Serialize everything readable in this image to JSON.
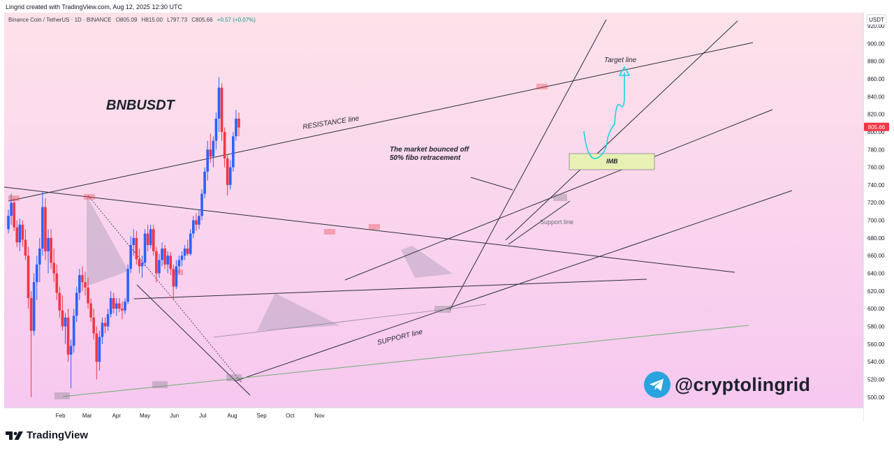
{
  "credit": "Lingrid created with TradingView.com, Aug 12, 2025 12:30 UTC",
  "header": {
    "symbol": "Binance Coin / TetherUS · 1D · BINANCE",
    "open": "O805.09",
    "high": "H815.00",
    "low": "L797.73",
    "close": "C805.66",
    "change": "+0.57 (+0.07%)",
    "change_color": "#089981"
  },
  "brand": "TradingView",
  "handle": "@cryptolingrid",
  "colors": {
    "bull": "#2962ff",
    "bear": "#f23645",
    "bg_top": "#fde2ea",
    "bg_bottom": "#f7c8f0",
    "projection": "#18d5e0",
    "imb_fill": "#e9f0b3",
    "support_green": "#6db06d"
  },
  "annotations": {
    "title": "BNBUSDT",
    "resistance": "RESISTANCE line",
    "support": "SUPPORT line",
    "support_gray": "Support line",
    "target": "Target line",
    "imb": "IMB",
    "bounce_1": "The market bounced off",
    "bounce_2": "50% fibo retracement"
  },
  "chart_data": {
    "type": "candlestick",
    "symbol": "BNBUSDT",
    "timeframe": "1D",
    "currency": "USDT",
    "y_axis_ticks": [
      920,
      900,
      880,
      860,
      840,
      820,
      800,
      780,
      760,
      740,
      720,
      700,
      680,
      660,
      640,
      620,
      600,
      580,
      560,
      540,
      520,
      500
    ],
    "ylim": [
      488,
      935
    ],
    "x_axis_ticks": [
      "Feb",
      "Mar",
      "Apr",
      "May",
      "Jun",
      "Jul",
      "Aug",
      "Sep",
      "Oct",
      "Nov"
    ],
    "last_price": "805.66",
    "last_price_value": 805.66,
    "series": [
      {
        "t": 0,
        "o": 690,
        "h": 712,
        "l": 685,
        "c": 705
      },
      {
        "t": 3,
        "o": 705,
        "h": 730,
        "l": 695,
        "c": 720
      },
      {
        "t": 6,
        "o": 720,
        "h": 725,
        "l": 688,
        "c": 692
      },
      {
        "t": 9,
        "o": 692,
        "h": 700,
        "l": 670,
        "c": 675
      },
      {
        "t": 12,
        "o": 675,
        "h": 702,
        "l": 665,
        "c": 695
      },
      {
        "t": 15,
        "o": 695,
        "h": 700,
        "l": 670,
        "c": 678
      },
      {
        "t": 18,
        "o": 678,
        "h": 690,
        "l": 655,
        "c": 660
      },
      {
        "t": 21,
        "o": 660,
        "h": 670,
        "l": 600,
        "c": 612
      },
      {
        "t": 24,
        "o": 612,
        "h": 620,
        "l": 500,
        "c": 575
      },
      {
        "t": 27,
        "o": 575,
        "h": 640,
        "l": 570,
        "c": 630
      },
      {
        "t": 30,
        "o": 630,
        "h": 660,
        "l": 610,
        "c": 650
      },
      {
        "t": 33,
        "o": 650,
        "h": 680,
        "l": 630,
        "c": 668
      },
      {
        "t": 36,
        "o": 668,
        "h": 732,
        "l": 660,
        "c": 715
      },
      {
        "t": 39,
        "o": 715,
        "h": 725,
        "l": 655,
        "c": 665
      },
      {
        "t": 42,
        "o": 665,
        "h": 690,
        "l": 640,
        "c": 680
      },
      {
        "t": 45,
        "o": 680,
        "h": 690,
        "l": 645,
        "c": 652
      },
      {
        "t": 48,
        "o": 652,
        "h": 668,
        "l": 630,
        "c": 640
      },
      {
        "t": 51,
        "o": 640,
        "h": 650,
        "l": 610,
        "c": 618
      },
      {
        "t": 54,
        "o": 618,
        "h": 625,
        "l": 590,
        "c": 598
      },
      {
        "t": 57,
        "o": 598,
        "h": 615,
        "l": 575,
        "c": 580
      },
      {
        "t": 60,
        "o": 580,
        "h": 595,
        "l": 560,
        "c": 590
      },
      {
        "t": 63,
        "o": 590,
        "h": 600,
        "l": 540,
        "c": 548
      },
      {
        "t": 66,
        "o": 548,
        "h": 565,
        "l": 510,
        "c": 558
      },
      {
        "t": 69,
        "o": 558,
        "h": 600,
        "l": 550,
        "c": 592
      },
      {
        "t": 72,
        "o": 592,
        "h": 625,
        "l": 585,
        "c": 618
      },
      {
        "t": 75,
        "o": 618,
        "h": 645,
        "l": 610,
        "c": 638
      },
      {
        "t": 78,
        "o": 638,
        "h": 648,
        "l": 620,
        "c": 630
      },
      {
        "t": 81,
        "o": 630,
        "h": 642,
        "l": 615,
        "c": 624
      },
      {
        "t": 84,
        "o": 624,
        "h": 635,
        "l": 600,
        "c": 606
      },
      {
        "t": 87,
        "o": 606,
        "h": 612,
        "l": 585,
        "c": 590
      },
      {
        "t": 90,
        "o": 590,
        "h": 600,
        "l": 565,
        "c": 572
      },
      {
        "t": 93,
        "o": 572,
        "h": 580,
        "l": 520,
        "c": 540
      },
      {
        "t": 96,
        "o": 540,
        "h": 575,
        "l": 530,
        "c": 568
      },
      {
        "t": 99,
        "o": 568,
        "h": 590,
        "l": 560,
        "c": 584
      },
      {
        "t": 102,
        "o": 584,
        "h": 590,
        "l": 572,
        "c": 580
      },
      {
        "t": 105,
        "o": 580,
        "h": 600,
        "l": 575,
        "c": 594
      },
      {
        "t": 108,
        "o": 594,
        "h": 620,
        "l": 590,
        "c": 612
      },
      {
        "t": 111,
        "o": 612,
        "h": 618,
        "l": 595,
        "c": 600
      },
      {
        "t": 114,
        "o": 600,
        "h": 612,
        "l": 592,
        "c": 606
      },
      {
        "t": 117,
        "o": 606,
        "h": 612,
        "l": 596,
        "c": 600
      },
      {
        "t": 120,
        "o": 600,
        "h": 608,
        "l": 588,
        "c": 598
      },
      {
        "t": 123,
        "o": 598,
        "h": 612,
        "l": 594,
        "c": 608
      },
      {
        "t": 126,
        "o": 608,
        "h": 650,
        "l": 605,
        "c": 645
      },
      {
        "t": 129,
        "o": 645,
        "h": 682,
        "l": 640,
        "c": 672
      },
      {
        "t": 132,
        "o": 672,
        "h": 690,
        "l": 660,
        "c": 680
      },
      {
        "t": 135,
        "o": 680,
        "h": 688,
        "l": 650,
        "c": 656
      },
      {
        "t": 138,
        "o": 656,
        "h": 668,
        "l": 640,
        "c": 648
      },
      {
        "t": 141,
        "o": 648,
        "h": 660,
        "l": 635,
        "c": 652
      },
      {
        "t": 144,
        "o": 652,
        "h": 690,
        "l": 648,
        "c": 685
      },
      {
        "t": 147,
        "o": 685,
        "h": 695,
        "l": 665,
        "c": 672
      },
      {
        "t": 150,
        "o": 672,
        "h": 695,
        "l": 668,
        "c": 690
      },
      {
        "t": 153,
        "o": 690,
        "h": 695,
        "l": 660,
        "c": 665
      },
      {
        "t": 156,
        "o": 665,
        "h": 670,
        "l": 630,
        "c": 640
      },
      {
        "t": 159,
        "o": 640,
        "h": 662,
        "l": 635,
        "c": 655
      },
      {
        "t": 162,
        "o": 655,
        "h": 675,
        "l": 648,
        "c": 668
      },
      {
        "t": 165,
        "o": 668,
        "h": 672,
        "l": 645,
        "c": 650
      },
      {
        "t": 168,
        "o": 650,
        "h": 665,
        "l": 640,
        "c": 660
      },
      {
        "t": 171,
        "o": 660,
        "h": 664,
        "l": 638,
        "c": 645
      },
      {
        "t": 174,
        "o": 645,
        "h": 650,
        "l": 610,
        "c": 625
      },
      {
        "t": 177,
        "o": 625,
        "h": 655,
        "l": 622,
        "c": 648
      },
      {
        "t": 180,
        "o": 648,
        "h": 660,
        "l": 640,
        "c": 655
      },
      {
        "t": 183,
        "o": 655,
        "h": 665,
        "l": 648,
        "c": 660
      },
      {
        "t": 186,
        "o": 660,
        "h": 672,
        "l": 655,
        "c": 668
      },
      {
        "t": 189,
        "o": 668,
        "h": 678,
        "l": 660,
        "c": 662
      },
      {
        "t": 192,
        "o": 662,
        "h": 690,
        "l": 660,
        "c": 685
      },
      {
        "t": 195,
        "o": 685,
        "h": 705,
        "l": 680,
        "c": 700
      },
      {
        "t": 198,
        "o": 700,
        "h": 708,
        "l": 688,
        "c": 695
      },
      {
        "t": 201,
        "o": 695,
        "h": 712,
        "l": 690,
        "c": 705
      },
      {
        "t": 204,
        "o": 705,
        "h": 735,
        "l": 700,
        "c": 730
      },
      {
        "t": 207,
        "o": 730,
        "h": 760,
        "l": 725,
        "c": 755
      },
      {
        "t": 210,
        "o": 755,
        "h": 790,
        "l": 745,
        "c": 780
      },
      {
        "t": 213,
        "o": 780,
        "h": 798,
        "l": 765,
        "c": 772
      },
      {
        "t": 216,
        "o": 772,
        "h": 795,
        "l": 760,
        "c": 790
      },
      {
        "t": 219,
        "o": 790,
        "h": 822,
        "l": 780,
        "c": 815
      },
      {
        "t": 222,
        "o": 815,
        "h": 862,
        "l": 800,
        "c": 850
      },
      {
        "t": 225,
        "o": 850,
        "h": 855,
        "l": 790,
        "c": 800
      },
      {
        "t": 228,
        "o": 800,
        "h": 805,
        "l": 760,
        "c": 770
      },
      {
        "t": 231,
        "o": 770,
        "h": 775,
        "l": 728,
        "c": 740
      },
      {
        "t": 234,
        "o": 740,
        "h": 768,
        "l": 735,
        "c": 760
      },
      {
        "t": 237,
        "o": 760,
        "h": 800,
        "l": 755,
        "c": 795
      },
      {
        "t": 240,
        "o": 795,
        "h": 825,
        "l": 790,
        "c": 815
      },
      {
        "t": 243,
        "o": 815,
        "h": 822,
        "l": 795,
        "c": 805
      }
    ]
  }
}
